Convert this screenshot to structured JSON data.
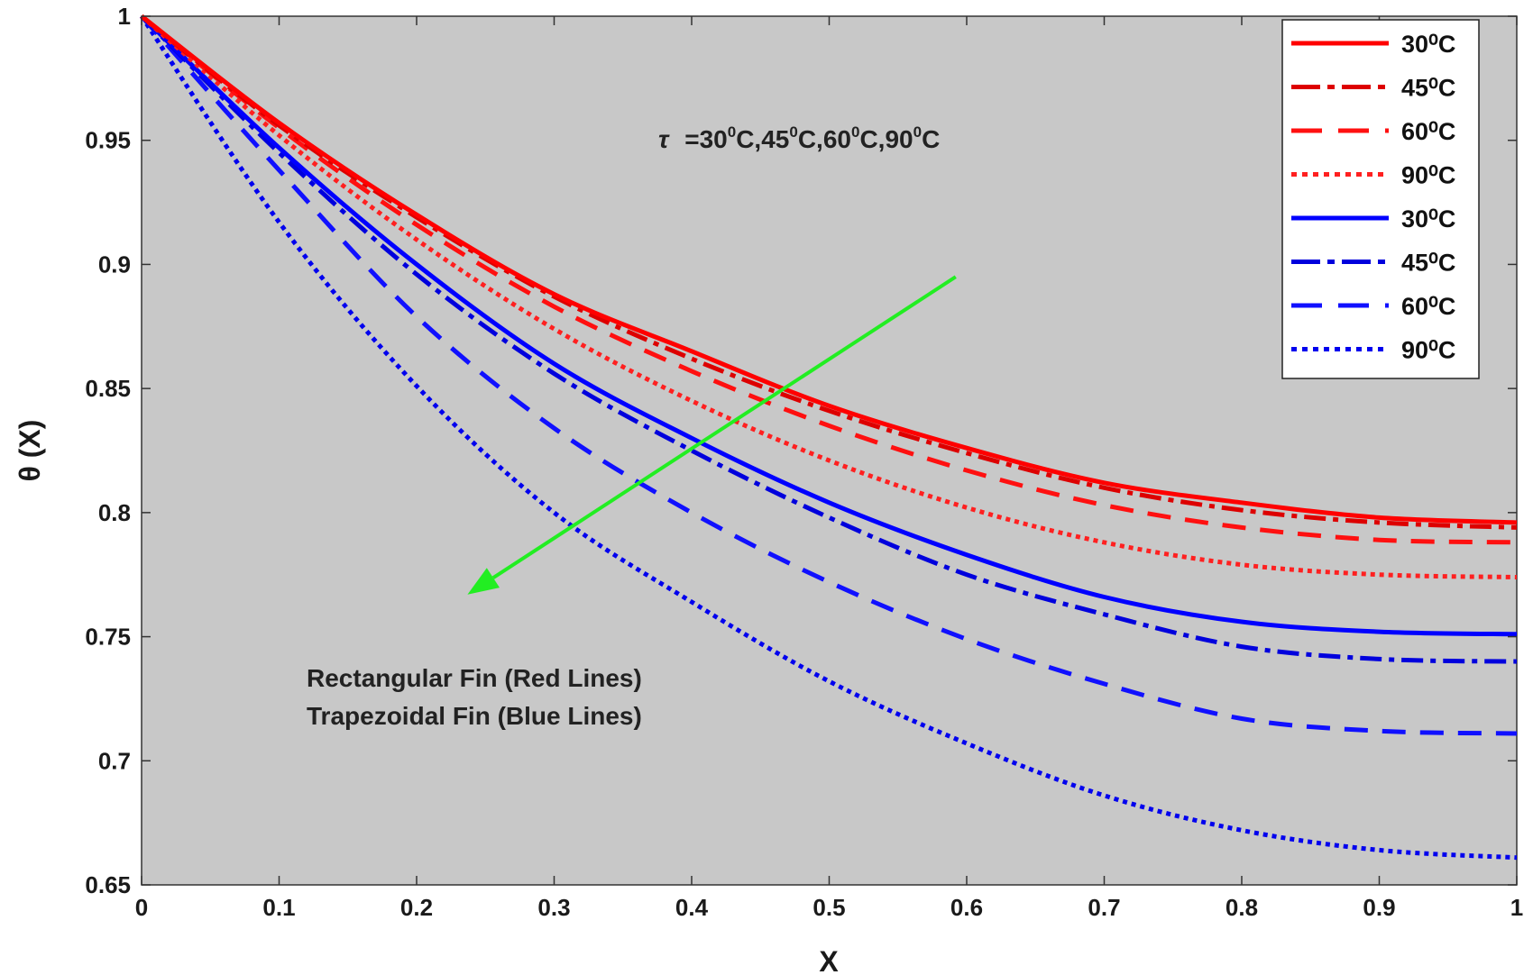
{
  "chart_data": {
    "type": "line",
    "xlabel": "X",
    "ylabel": "θ (X)",
    "xlim": [
      0,
      1
    ],
    "ylim": [
      0.65,
      1
    ],
    "x_ticks": [
      "0",
      "0.1",
      "0.2",
      "0.3",
      "0.4",
      "0.5",
      "0.6",
      "0.7",
      "0.8",
      "0.9",
      "1"
    ],
    "y_ticks": [
      "0.65",
      "0.7",
      "0.75",
      "0.8",
      "0.85",
      "0.9",
      "0.95",
      "1"
    ],
    "grid": false,
    "background": "#c8c8c8",
    "legend_position": "top-right",
    "x": [
      0,
      0.1,
      0.2,
      0.3,
      0.4,
      0.5,
      0.6,
      0.7,
      0.8,
      0.9,
      1.0
    ],
    "series": [
      {
        "name": "30⁰C",
        "fin": "Rectangular",
        "color": "#ff0000",
        "dash": "solid",
        "values": [
          1.0,
          0.957,
          0.92,
          0.888,
          0.865,
          0.843,
          0.826,
          0.812,
          0.804,
          0.798,
          0.796
        ]
      },
      {
        "name": "45⁰C",
        "fin": "Rectangular",
        "color": "#dd0000",
        "dash": "dashdot",
        "values": [
          1.0,
          0.956,
          0.919,
          0.887,
          0.862,
          0.841,
          0.824,
          0.81,
          0.801,
          0.796,
          0.794
        ]
      },
      {
        "name": "60⁰C",
        "fin": "Rectangular",
        "color": "#ff1010",
        "dash": "dashed",
        "values": [
          1.0,
          0.955,
          0.916,
          0.883,
          0.857,
          0.835,
          0.817,
          0.803,
          0.794,
          0.789,
          0.788
        ]
      },
      {
        "name": "90⁰C",
        "fin": "Rectangular",
        "color": "#ff2020",
        "dash": "dotted",
        "values": [
          1.0,
          0.952,
          0.91,
          0.874,
          0.845,
          0.821,
          0.802,
          0.788,
          0.779,
          0.775,
          0.774
        ]
      },
      {
        "name": "30⁰C",
        "fin": "Trapezoidal",
        "color": "#0000ff",
        "dash": "solid",
        "values": [
          1.0,
          0.947,
          0.9,
          0.86,
          0.83,
          0.804,
          0.783,
          0.766,
          0.756,
          0.752,
          0.751
        ]
      },
      {
        "name": "45⁰C",
        "fin": "Trapezoidal",
        "color": "#0000dd",
        "dash": "dashdot",
        "values": [
          1.0,
          0.945,
          0.896,
          0.856,
          0.825,
          0.798,
          0.775,
          0.759,
          0.746,
          0.741,
          0.74
        ]
      },
      {
        "name": "60⁰C",
        "fin": "Trapezoidal",
        "color": "#1010ff",
        "dash": "dashed",
        "values": [
          1.0,
          0.938,
          0.879,
          0.834,
          0.8,
          0.772,
          0.749,
          0.731,
          0.717,
          0.712,
          0.711
        ]
      },
      {
        "name": "90⁰C",
        "fin": "Trapezoidal",
        "color": "#0000ee",
        "dash": "dotted",
        "values": [
          1.0,
          0.917,
          0.851,
          0.8,
          0.764,
          0.732,
          0.707,
          0.686,
          0.672,
          0.664,
          0.661
        ]
      }
    ],
    "annotations": {
      "tau_label": "τ",
      "tau_values": [
        {
          "base": "=30",
          "sup": "0",
          "unit": "C,"
        },
        {
          "base": "45",
          "sup": "0",
          "unit": "C,"
        },
        {
          "base": "60",
          "sup": "0",
          "unit": "C,"
        },
        {
          "base": "90",
          "sup": "0",
          "unit": "C"
        }
      ],
      "fin_note_1": "Rectangular Fin (Red Lines)",
      "fin_note_2": "Trapezoidal Fin (Blue Lines)",
      "arrow_color": "#22ee22",
      "arrow_from": [
        0.592,
        0.895
      ],
      "arrow_to": [
        0.237,
        0.767
      ]
    }
  }
}
